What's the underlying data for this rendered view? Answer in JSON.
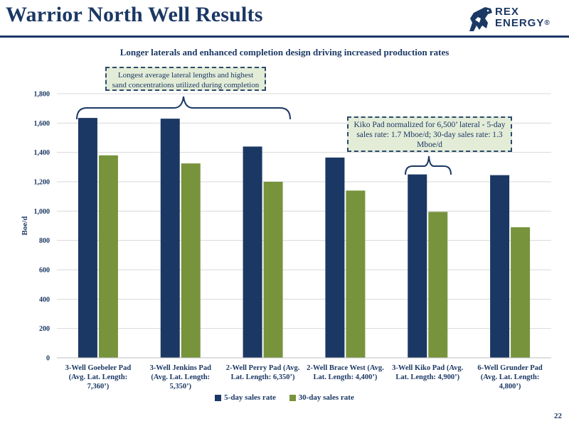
{
  "slide": {
    "title": "Warrior North Well Results",
    "subtitle": "Longer laterals and enhanced completion design driving increased production rates",
    "page_number": "22"
  },
  "logo": {
    "line1": "REX",
    "line2": "ENERGY",
    "mark": "®"
  },
  "callouts": {
    "left": "Longest average lateral lengths and highest sand concentrations utilized during completion",
    "right": "Kiko Pad normalized for 6,500’ lateral - 5-day sales rate: 1.7 Mboe/d; 30-day sales rate: 1.3 Mboe/d"
  },
  "colors": {
    "series_5day": "#1b3864",
    "series_30day": "#77933c",
    "title": "#1b3864",
    "gridline": "#d9d9d9"
  },
  "chart_data": {
    "type": "bar",
    "ylabel": "Boe/d",
    "ylim": [
      0,
      1800
    ],
    "yticks": [
      0,
      200,
      400,
      600,
      800,
      1000,
      1200,
      1400,
      1600,
      1800
    ],
    "ytick_labels": [
      "0",
      "200",
      "400",
      "600",
      "800",
      "1,000",
      "1,200",
      "1,400",
      "1,600",
      "1,800"
    ],
    "grid": true,
    "legend_position": "bottom",
    "categories": [
      [
        "3-Well Goebeler Pad",
        "(Avg. Lat. Length:",
        "7,360’)"
      ],
      [
        "3-Well Jenkins Pad",
        "(Avg. Lat. Length:",
        "5,350’)"
      ],
      [
        "2-Well Perry Pad (Avg.",
        "Lat. Length: 6,350’)"
      ],
      [
        "2-Well Brace West (Avg.",
        "Lat. Length: 4,400’)"
      ],
      [
        "3-Well Kiko Pad (Avg.",
        "Lat. Length: 4,900’)"
      ],
      [
        "6-Well Grunder Pad",
        "(Avg. Lat. Length:",
        "4,800’)"
      ]
    ],
    "series": [
      {
        "name": "5-day sales rate",
        "values": [
          1635,
          1630,
          1440,
          1365,
          1250,
          1245
        ]
      },
      {
        "name": "30-day sales rate",
        "values": [
          1380,
          1325,
          1200,
          1140,
          995,
          890
        ]
      }
    ]
  }
}
